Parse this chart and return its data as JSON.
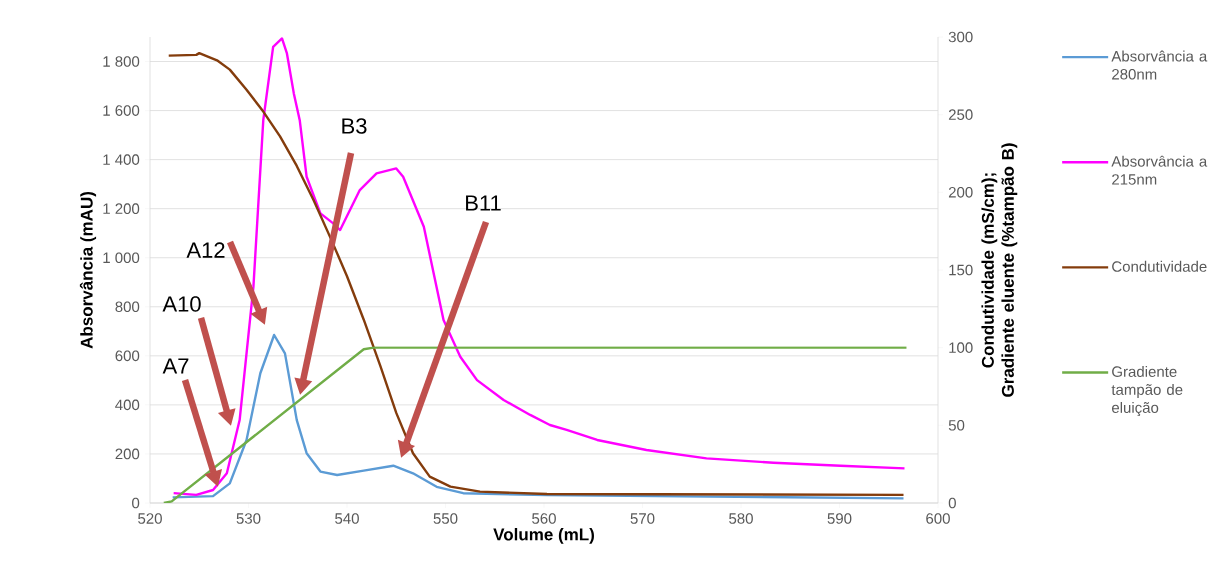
{
  "chart_data": {
    "type": "line",
    "xlabel": "Volume (mL)",
    "ylabel": "Absorvância (mAU)",
    "y2label": "Condutividade (mS/cm); Gradiente eluente (%tampão B)",
    "xlim": [
      520,
      600
    ],
    "xticks": [
      520,
      530,
      540,
      550,
      560,
      570,
      580,
      590,
      600
    ],
    "ylim": [
      0,
      1900
    ],
    "yticks": [
      0,
      200,
      400,
      600,
      800,
      {
        "value": 1000,
        "label": "1 000"
      },
      {
        "value": 1200,
        "label": "1 200"
      },
      {
        "value": 1400,
        "label": "1 400"
      },
      {
        "value": 1600,
        "label": "1 600"
      },
      {
        "value": 1800,
        "label": "1 800"
      }
    ],
    "y2lim": [
      0,
      300
    ],
    "y2ticks": [
      0,
      50,
      100,
      150,
      200,
      250,
      300
    ],
    "grid": "y",
    "legend": "right",
    "series": [
      {
        "name": "Absorvância a 280nm",
        "color": "#5b9bd5",
        "x": [
          522.3,
          526.4,
          528.1,
          529.8,
          531.2,
          532.6,
          533.7,
          534.9,
          535.9,
          537.3,
          539.0,
          541.7,
          544.7,
          546.7,
          549.1,
          551.8,
          560.3,
          596.5
        ],
        "values": [
          23,
          28,
          80,
          257,
          529,
          685,
          610,
          338,
          203,
          128,
          114,
          132,
          152,
          121,
          66,
          40,
          32,
          19
        ]
      },
      {
        "name": "Absorvância a 215nm",
        "color": "#ff00ff",
        "x": [
          522.4,
          524.7,
          526.4,
          527.8,
          529.1,
          530.5,
          531.5,
          532.5,
          533.4,
          533.9,
          534.6,
          535.2,
          535.9,
          537.3,
          538.6,
          539.3,
          541.3,
          543.0,
          545.0,
          545.7,
          547.8,
          549.8,
          551.5,
          553.2,
          555.9,
          558.6,
          560.6,
          562.3,
          565.4,
          570.4,
          576.5,
          583.3,
          590.1,
          596.6
        ],
        "values": [
          40,
          33,
          53,
          121,
          338,
          882,
          1561,
          1860,
          1894,
          1833,
          1670,
          1561,
          1330,
          1181,
          1140,
          1113,
          1276,
          1344,
          1364,
          1330,
          1126,
          746,
          596,
          501,
          420,
          359,
          318,
          298,
          257,
          216,
          182,
          164,
          152,
          141
        ]
      },
      {
        "name": "Condutividade",
        "color": "#843c0c",
        "axis": "y2",
        "x": [
          521.9,
          524.7,
          525.0,
          526.8,
          528.1,
          529.8,
          531.5,
          533.2,
          534.9,
          536.6,
          538.3,
          540.0,
          541.7,
          543.4,
          545.0,
          546.7,
          548.4,
          550.5,
          553.5,
          560.3,
          596.5
        ],
        "values": [
          288,
          288.5,
          289.6,
          285,
          279,
          266,
          252,
          236,
          217,
          195,
          171,
          146,
          118,
          88,
          58,
          32,
          17,
          10.5,
          7.3,
          5.8,
          5.2
        ]
      },
      {
        "name": "Gradiente tampão de eluição",
        "color": "#70ad47",
        "axis": "y2",
        "x": [
          521.4,
          522.2,
          541.7,
          542.7,
          596.8
        ],
        "values": [
          0,
          1,
          99,
          100,
          100
        ]
      }
    ],
    "annotations": [
      "A7",
      "A10",
      "A12",
      "B3",
      "B11"
    ]
  }
}
